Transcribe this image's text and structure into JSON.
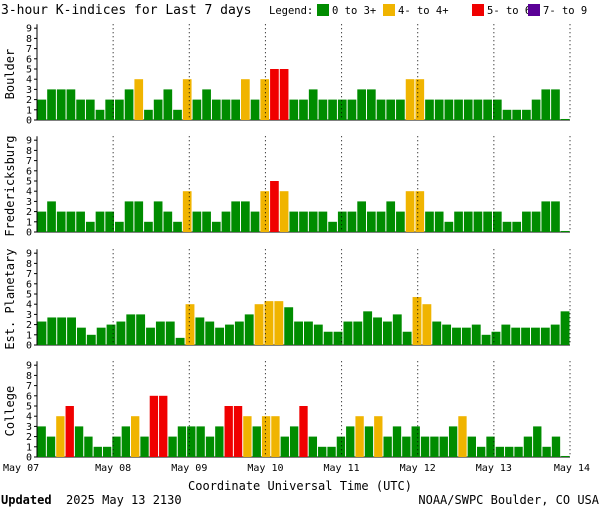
{
  "header": {
    "title": "3-hour K-indices for Last 7 days",
    "legend_label": "Legend:",
    "legend": [
      {
        "label": "0 to 3+",
        "color": "#008C00"
      },
      {
        "label": "4- to 4+",
        "color": "#F0B400"
      },
      {
        "label": "5- to 6+",
        "color": "#F00000"
      },
      {
        "label": "7- to 9",
        "color": "#5A0096"
      }
    ]
  },
  "footer": {
    "xlabel": "Coordinate Universal Time (UTC)",
    "updated_label": "Updated",
    "updated_value": "2025 May 13 2130",
    "source": "NOAA/SWPC Boulder, CO USA"
  },
  "chart_data": [
    {
      "type": "bar",
      "title": "Boulder",
      "ylabel": "Boulder",
      "ylim": [
        0,
        9
      ],
      "yticks": [
        0,
        1,
        2,
        3,
        4,
        5,
        6,
        7,
        8,
        9
      ],
      "x_ticks": [
        "May 07",
        "May 08",
        "May 09",
        "May 10",
        "May 11",
        "May 12",
        "May 13",
        "May 14"
      ],
      "values": [
        2,
        3,
        3,
        3,
        2,
        2,
        1,
        2,
        2,
        3,
        4,
        1,
        2,
        3,
        1,
        4,
        2,
        3,
        2,
        2,
        2,
        4,
        2,
        4,
        5,
        5,
        2,
        2,
        3,
        2,
        2,
        2,
        2,
        3,
        3,
        2,
        2,
        2,
        4,
        4,
        2,
        2,
        2,
        2,
        2,
        2,
        2,
        2,
        1,
        1,
        1,
        2,
        3,
        3,
        0.1
      ]
    },
    {
      "type": "bar",
      "title": "Fredericksburg",
      "ylabel": "Fredericksburg",
      "ylim": [
        0,
        9
      ],
      "yticks": [
        0,
        1,
        2,
        3,
        4,
        5,
        6,
        7,
        8,
        9
      ],
      "x_ticks": [
        "May 07",
        "May 08",
        "May 09",
        "May 10",
        "May 11",
        "May 12",
        "May 13",
        "May 14"
      ],
      "values": [
        2,
        3,
        2,
        2,
        2,
        1,
        2,
        2,
        1,
        3,
        3,
        1,
        3,
        2,
        1,
        4,
        2,
        2,
        1,
        2,
        3,
        3,
        2,
        4,
        5,
        4,
        2,
        2,
        2,
        2,
        1,
        2,
        2,
        3,
        2,
        2,
        3,
        2,
        4,
        4,
        2,
        2,
        1,
        2,
        2,
        2,
        2,
        2,
        1,
        1,
        2,
        2,
        3,
        3,
        0.1
      ]
    },
    {
      "type": "bar",
      "title": "Est. Planetary",
      "ylabel": "Est. Planetary",
      "ylim": [
        0,
        9
      ],
      "yticks": [
        0,
        1,
        2,
        3,
        4,
        5,
        6,
        7,
        8,
        9
      ],
      "x_ticks": [
        "May 07",
        "May 08",
        "May 09",
        "May 10",
        "May 11",
        "May 12",
        "May 13",
        "May 14"
      ],
      "values": [
        2.3,
        2.7,
        2.7,
        2.7,
        1.7,
        1,
        1.7,
        2,
        2.3,
        3,
        3,
        1.7,
        2.3,
        2.3,
        0.7,
        4,
        2.7,
        2.3,
        1.7,
        2,
        2.3,
        3,
        4,
        4.3,
        4.3,
        3.7,
        2.3,
        2.3,
        2,
        1.3,
        1.3,
        2.3,
        2.3,
        3.3,
        2.7,
        2.3,
        3,
        1.3,
        4.7,
        4,
        2.3,
        2,
        1.7,
        1.7,
        2,
        1,
        1.3,
        2,
        1.7,
        1.7,
        1.7,
        1.7,
        2,
        3.3
      ]
    },
    {
      "type": "bar",
      "title": "College",
      "ylabel": "College",
      "ylim": [
        0,
        9
      ],
      "yticks": [
        0,
        1,
        2,
        3,
        4,
        5,
        6,
        7,
        8,
        9
      ],
      "x_ticks": [
        "May 07",
        "May 08",
        "May 09",
        "May 10",
        "May 11",
        "May 12",
        "May 13",
        "May 14"
      ],
      "values": [
        3,
        2,
        4,
        5,
        3,
        2,
        1,
        1,
        2,
        3,
        4,
        2,
        6,
        6,
        2,
        3,
        3,
        3,
        2,
        3,
        5,
        5,
        4,
        3,
        4,
        4,
        2,
        3,
        5,
        2,
        1,
        1,
        2,
        3,
        4,
        3,
        4,
        2,
        3,
        2,
        3,
        2,
        2,
        2,
        3,
        4,
        2,
        1,
        2,
        1,
        1,
        1,
        2,
        3,
        1,
        2,
        0.1
      ]
    }
  ]
}
